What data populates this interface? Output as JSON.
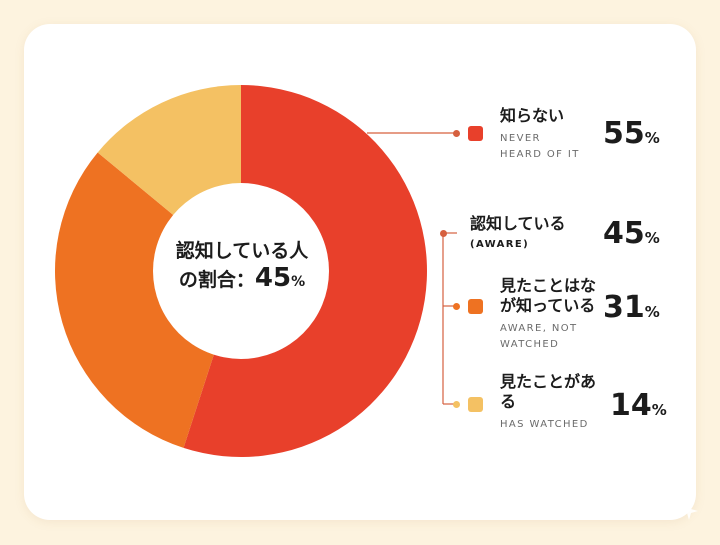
{
  "colors": {
    "never": "#e8402b",
    "aware_not_watched": "#ee7222",
    "watched": "#f4c163",
    "connector": "#d6603f"
  },
  "center": {
    "line1": "認知している人",
    "line2_prefix": "の割合：",
    "value": "45",
    "unit": "%"
  },
  "chart_data": {
    "type": "pie",
    "donut": true,
    "slices": [
      {
        "label": "知らない",
        "sublabel": "NEVER HEARD OF IT",
        "value": 55
      },
      {
        "label": "見たことはないが知っている",
        "sublabel": "AWARE, NOT WATCHED",
        "value": 31
      },
      {
        "label": "見たことがある",
        "sublabel": "HAS WATCHED",
        "value": 14
      }
    ],
    "group": {
      "label": "認知している",
      "sublabel": "(AWARE)",
      "value": 45
    }
  },
  "legend": {
    "never": {
      "label": "知らない",
      "sub1": "NEVER",
      "sub2": "HEARD OF IT",
      "value": "55",
      "unit": "%"
    },
    "aware": {
      "label": "認知している",
      "sub": "(AWARE)",
      "value": "45",
      "unit": "%"
    },
    "not_watched": {
      "label1": "見たことはな",
      "label2": "が知っている",
      "sub1": "AWARE, NOT",
      "sub2": "WATCHED",
      "value": "31",
      "unit": "%"
    },
    "watched": {
      "label1": "見たことがあ",
      "label2": "る",
      "sub": "HAS WATCHED",
      "value": "14",
      "unit": "%"
    }
  }
}
